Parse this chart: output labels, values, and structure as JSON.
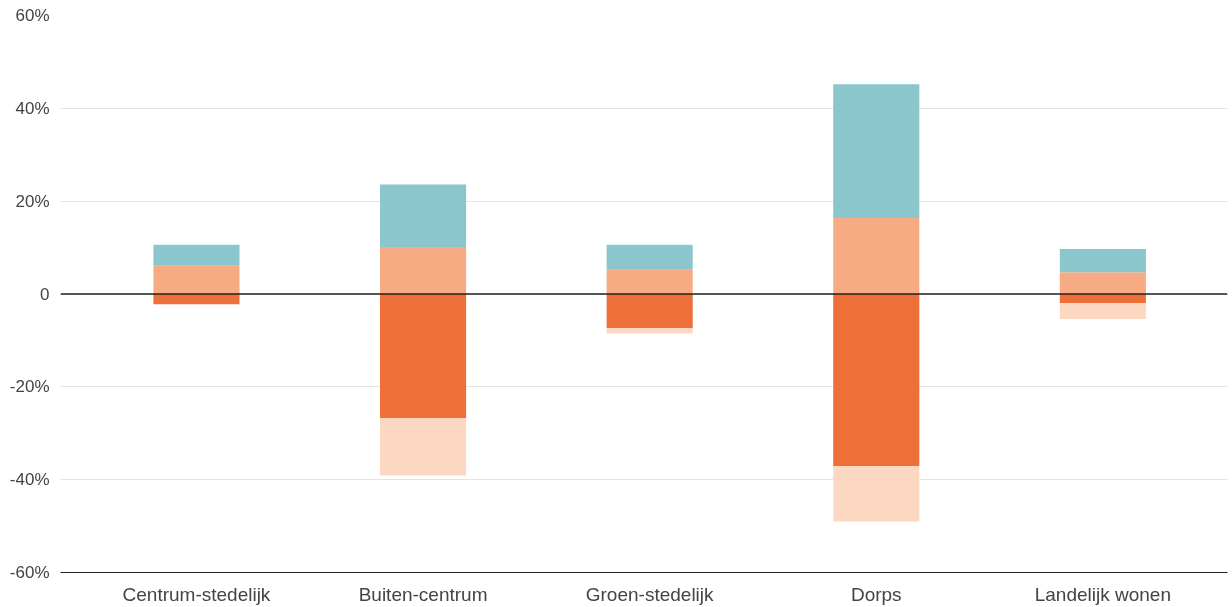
{
  "chart_data": {
    "type": "bar",
    "stacked": true,
    "categories": [
      "Centrum-stedelijk",
      "Buiten-centrum",
      "Groen-stedelijk",
      "Dorps",
      "Landelijk wonen"
    ],
    "series": [
      {
        "color": "#f6ab83",
        "values": [
          6.1,
          10.1,
          5.2,
          16.4,
          4.7
        ]
      },
      {
        "color": "#8ac6cc",
        "values": [
          4.5,
          13.5,
          5.4,
          28.8,
          5.0
        ]
      },
      {
        "color": "#ee7038",
        "values": [
          -2.2,
          -26.7,
          -7.4,
          -37.1,
          -2.0
        ]
      },
      {
        "color": "#fcd8c2",
        "values": [
          null,
          -12.4,
          -1.1,
          -11.9,
          -3.4
        ]
      }
    ],
    "ylim": [
      -60,
      60
    ],
    "yticks": [
      {
        "value": -60,
        "label": "-60%"
      },
      {
        "value": -40,
        "label": "-40%"
      },
      {
        "value": -20,
        "label": "-20%"
      },
      0,
      {
        "value": 20,
        "label": "20%"
      },
      {
        "value": 40,
        "label": "40%"
      },
      {
        "value": 60,
        "label": "60%"
      }
    ],
    "grid": "y",
    "ref_lines": [
      {
        "axis": "y",
        "value": 0,
        "color": "#222222"
      }
    ]
  }
}
